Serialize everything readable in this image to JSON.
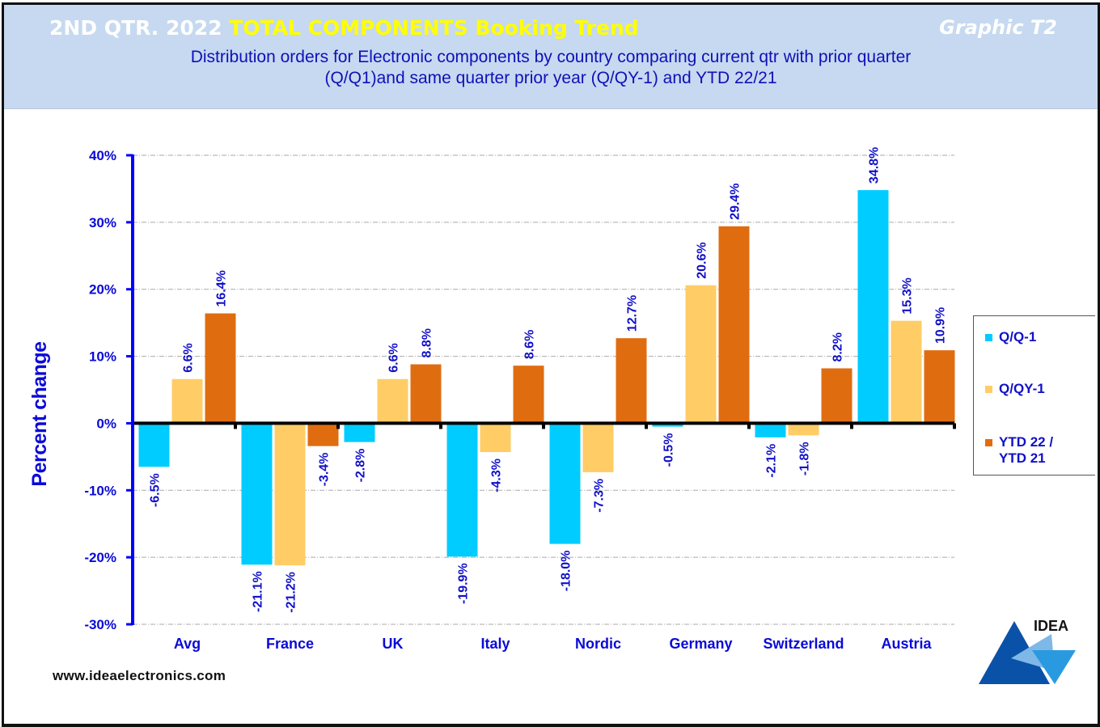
{
  "header": {
    "title_part1": "2ND QTR. 2022 ",
    "title_part2": "TOTAL COMPONENTS  Booking Trend",
    "graphic_id": "Graphic T2",
    "subtitle_line1": "Distribution  orders for Electronic components by country comparing  current qtr with prior quarter",
    "subtitle_line2": "(Q/Q1)and  same quarter prior year (Q/QY-1)  and YTD  22/21"
  },
  "footer": {
    "website": "www.ideaelectronics.com",
    "logo_text": "IDEA"
  },
  "colors": {
    "header_bg": "#c6d9f0",
    "title_white": "#ffffff",
    "title_yellow": "#ffff00",
    "text_blue": "#1010c8",
    "axis_blue": "#0000ff",
    "series_qq1": "#00ccff",
    "series_qqy1": "#ffcc66",
    "series_ytd": "#e06c10"
  },
  "chart_data": {
    "type": "bar",
    "title": "2ND QTR. 2022 TOTAL COMPONENTS Booking Trend",
    "subtitle": "Distribution orders for Electronic components by country comparing current qtr with prior quarter (Q/Q1)and same quarter prior year (Q/QY-1) and YTD 22/21",
    "xlabel": "",
    "ylabel": "Percent change",
    "ylim": [
      -30,
      40
    ],
    "yticks": [
      -30,
      -20,
      -10,
      0,
      10,
      20,
      30,
      40
    ],
    "ytick_labels": [
      "-30%",
      "-20%",
      "-10%",
      "0%",
      "10%",
      "20%",
      "30%",
      "40%"
    ],
    "grid": true,
    "legend_position": "right",
    "categories": [
      "Avg",
      "France",
      "UK",
      "Italy",
      "Nordic",
      "Germany",
      "Switzerland",
      "Austria"
    ],
    "series": [
      {
        "name": "Q/Q-1",
        "color": "#00ccff",
        "values": [
          -6.5,
          -21.1,
          -2.8,
          -19.9,
          -18.0,
          -0.5,
          -2.1,
          34.8
        ]
      },
      {
        "name": "Q/QY-1",
        "color": "#ffcc66",
        "values": [
          6.6,
          -21.2,
          6.6,
          -4.3,
          -7.3,
          20.6,
          -1.8,
          15.3
        ]
      },
      {
        "name": "YTD 22 / YTD 21",
        "color": "#e06c10",
        "values": [
          16.4,
          -3.4,
          8.8,
          8.6,
          12.7,
          29.4,
          8.2,
          10.9
        ]
      }
    ],
    "data_labels": [
      [
        "-6.5%",
        "-21.1%",
        "-2.8%",
        "-19.9%",
        "-18.0%",
        "-0.5%",
        "-2.1%",
        "34.8%"
      ],
      [
        "6.6%",
        "-21.2%",
        "6.6%",
        "-4.3%",
        "-7.3%",
        "20.6%",
        "-1.8%",
        "15.3%"
      ],
      [
        "16.4%",
        "-3.4%",
        "8.8%",
        "8.6%",
        "12.7%",
        "29.4%",
        "8.2%",
        "10.9%"
      ]
    ],
    "legend_labels": [
      [
        "Q/Q-1"
      ],
      [
        "Q/QY-1"
      ],
      [
        "YTD 22 /",
        "YTD 21"
      ]
    ]
  }
}
